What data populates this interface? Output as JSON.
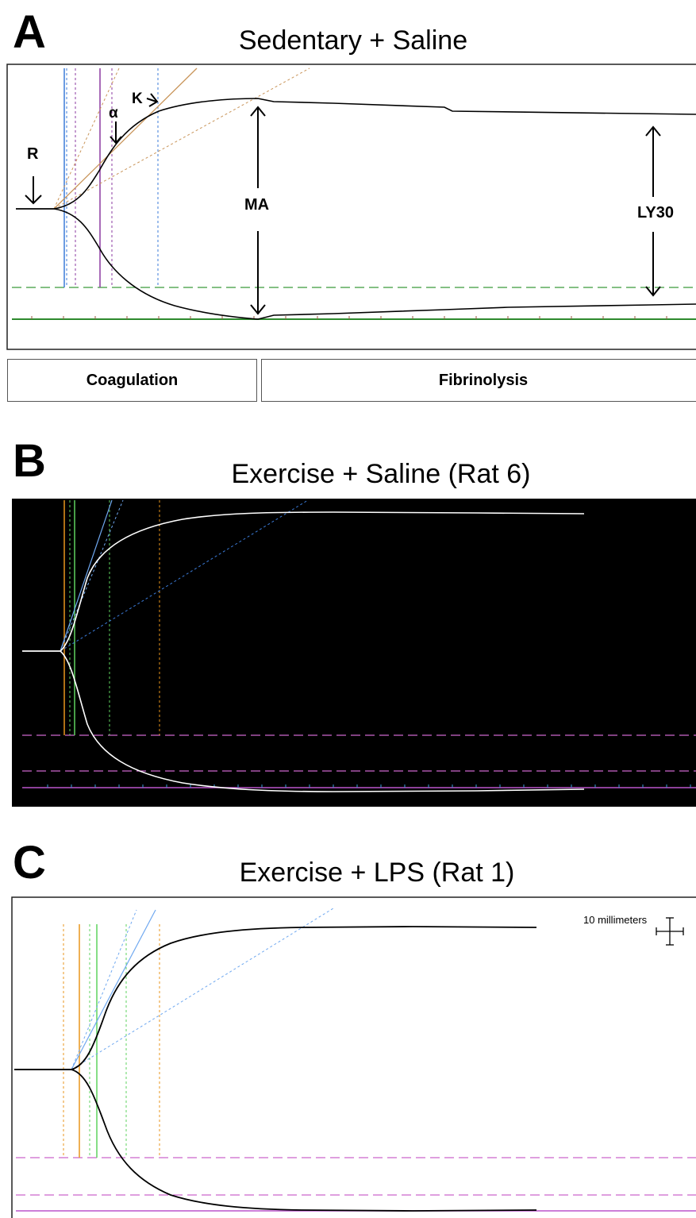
{
  "panels": [
    {
      "letter": "A",
      "title": "Sedentary + Saline",
      "annotations": {
        "r": "R",
        "alpha": "α",
        "k": "K",
        "ma": "MA",
        "ly30": "LY30"
      },
      "phases": {
        "coagulation": "Coagulation",
        "fibrinolysis": "Fibrinolysis"
      }
    },
    {
      "letter": "B",
      "title": "Exercise + Saline (Rat 6)"
    },
    {
      "letter": "C",
      "title": "Exercise + LPS (Rat 1)",
      "scale_label": "10 millimeters"
    }
  ],
  "colors": {
    "trace_dark": "#000000",
    "trace_light": "#ffffff",
    "panel_b_background": "#000000",
    "blue": "#3b7bd8",
    "purple": "#8b3aa0",
    "tan": "#c9955a",
    "green": "#3a9a3a",
    "orange": "#e8951c",
    "light_green": "#5fd35f",
    "magenta": "#cc66cc"
  }
}
